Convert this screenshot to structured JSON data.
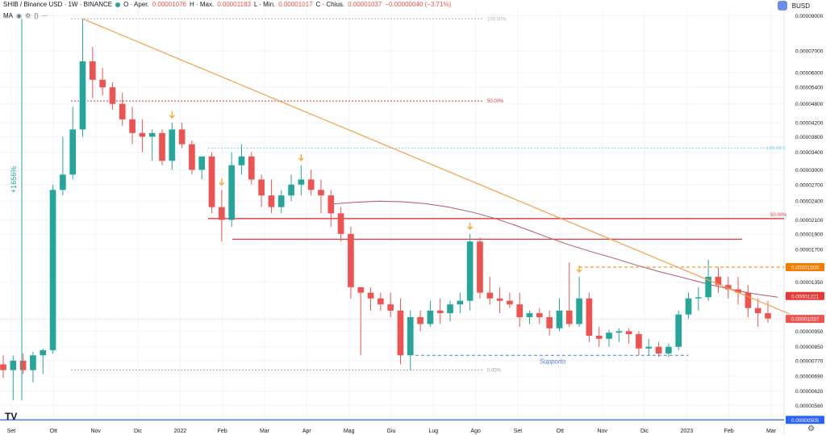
{
  "header": {
    "symbol": "SHIB / Binance USD · 1W · BINANCE",
    "open_label": "O · Aper.",
    "open_value": "0.00001076",
    "high_label": "H · Max.",
    "high_value": "0.00001183",
    "low_label": "L · Min.",
    "low_value": "0.00001017",
    "close_label": "C · Chius.",
    "close_value": "0.00001037",
    "change_value": "−0.00000040 (−3.71%)",
    "indicator_label": "MA",
    "currency": "BUSD"
  },
  "colors": {
    "up": "#26a69a",
    "down": "#ef5350",
    "trendline": "#f5a04b",
    "resistance": "#e0393e",
    "ma": "#b5566a",
    "support": "#4a7fe0",
    "fib_cyan": "#7fd8e8",
    "gain_arrow": "#26a69a"
  },
  "chart_data": {
    "type": "candlestick",
    "title": "",
    "x_labels": [
      "Set",
      "Ott",
      "Nov",
      "Dic",
      "2022",
      "Feb",
      "Mar",
      "Apr",
      "Mag",
      "Giu",
      "Lug",
      "Ago",
      "Set",
      "Ott",
      "Nov",
      "Dic",
      "2023",
      "Feb",
      "Mar"
    ],
    "y_ticks": [
      "0.00009000",
      "0.00007000",
      "0.00006000",
      "0.00005400",
      "0.00004800",
      "0.00004200",
      "0.00003800",
      "0.00003400",
      "0.00003000",
      "0.00002700",
      "0.00002400",
      "0.00002100",
      "0.00001900",
      "0.00001700",
      "0.00001350",
      "0.00000950",
      "0.00000850",
      "0.00000770",
      "0.00000690",
      "0.00000620",
      "0.00000560"
    ],
    "y_scale": "log",
    "price_badges": [
      {
        "label": "0.00001500",
        "value": 1.5e-05,
        "color": "#f57c00"
      },
      {
        "label": "0.00001221",
        "value": 1.221e-05,
        "color": "#e53935"
      },
      {
        "label": "0.00001037",
        "value": 1.037e-05,
        "color": "#ef5350"
      },
      {
        "label": "0.00000505",
        "value": 5.05e-06,
        "color": "#2962ff"
      }
    ],
    "candles": [
      {
        "o": 7.5e-06,
        "h": 8e-06,
        "l": 6.8e-06,
        "c": 7.2e-06
      },
      {
        "o": 7.2e-06,
        "h": 8e-06,
        "l": 5.8e-06,
        "c": 7.7e-06
      },
      {
        "o": 7.7e-06,
        "h": 8.1e-06,
        "l": 7e-06,
        "c": 7.2e-06
      },
      {
        "o": 7.2e-06,
        "h": 8.2e-06,
        "l": 6.6e-06,
        "c": 8e-06
      },
      {
        "o": 8e-06,
        "h": 8.4e-06,
        "l": 7e-06,
        "c": 8.3e-06
      },
      {
        "o": 8.3e-06,
        "h": 2.7e-05,
        "l": 8.1e-06,
        "c": 2.6e-05
      },
      {
        "o": 2.6e-05,
        "h": 3.8e-05,
        "l": 2.5e-05,
        "c": 2.9e-05
      },
      {
        "o": 2.9e-05,
        "h": 4.7e-05,
        "l": 2.8e-05,
        "c": 4e-05
      },
      {
        "o": 4e-05,
        "h": 8.8e-05,
        "l": 3.8e-05,
        "c": 6.5e-05
      },
      {
        "o": 6.5e-05,
        "h": 7.2e-05,
        "l": 5e-05,
        "c": 5.7e-05
      },
      {
        "o": 5.7e-05,
        "h": 6.2e-05,
        "l": 5.1e-05,
        "c": 5.4e-05
      },
      {
        "o": 5.4e-05,
        "h": 5.6e-05,
        "l": 4.6e-05,
        "c": 4.8e-05
      },
      {
        "o": 4.8e-05,
        "h": 5.2e-05,
        "l": 4.1e-05,
        "c": 4.3e-05
      },
      {
        "o": 4.3e-05,
        "h": 4.7e-05,
        "l": 3.6e-05,
        "c": 3.9e-05
      },
      {
        "o": 3.9e-05,
        "h": 4.3e-05,
        "l": 3.4e-05,
        "c": 3.8e-05
      },
      {
        "o": 3.8e-05,
        "h": 4e-05,
        "l": 3.2e-05,
        "c": 3.9e-05
      },
      {
        "o": 3.9e-05,
        "h": 4e-05,
        "l": 3.1e-05,
        "c": 3.2e-05
      },
      {
        "o": 3.2e-05,
        "h": 4.2e-05,
        "l": 3e-05,
        "c": 4e-05
      },
      {
        "o": 4e-05,
        "h": 4.2e-05,
        "l": 3.5e-05,
        "c": 3.6e-05
      },
      {
        "o": 3.6e-05,
        "h": 3.7e-05,
        "l": 2.9e-05,
        "c": 3e-05
      },
      {
        "o": 3e-05,
        "h": 3.3e-05,
        "l": 2.8e-05,
        "c": 3.3e-05
      },
      {
        "o": 3.3e-05,
        "h": 3.4e-05,
        "l": 2.2e-05,
        "c": 2.3e-05
      },
      {
        "o": 2.3e-05,
        "h": 2.6e-05,
        "l": 1.8e-05,
        "c": 2.1e-05
      },
      {
        "o": 2.1e-05,
        "h": 3.4e-05,
        "l": 2e-05,
        "c": 3.1e-05
      },
      {
        "o": 3.1e-05,
        "h": 3.6e-05,
        "l": 2.9e-05,
        "c": 3.3e-05
      },
      {
        "o": 3.3e-05,
        "h": 3.4e-05,
        "l": 2.7e-05,
        "c": 2.8e-05
      },
      {
        "o": 2.8e-05,
        "h": 2.9e-05,
        "l": 2.3e-05,
        "c": 2.5e-05
      },
      {
        "o": 2.5e-05,
        "h": 2.8e-05,
        "l": 2.2e-05,
        "c": 2.3e-05
      },
      {
        "o": 2.3e-05,
        "h": 2.6e-05,
        "l": 2.2e-05,
        "c": 2.5e-05
      },
      {
        "o": 2.5e-05,
        "h": 2.9e-05,
        "l": 2.4e-05,
        "c": 2.7e-05
      },
      {
        "o": 2.7e-05,
        "h": 3.1e-05,
        "l": 2.5e-05,
        "c": 2.8e-05
      },
      {
        "o": 2.8e-05,
        "h": 3e-05,
        "l": 2.5e-05,
        "c": 2.6e-05
      },
      {
        "o": 2.6e-05,
        "h": 2.8e-05,
        "l": 2.2e-05,
        "c": 2.5e-05
      },
      {
        "o": 2.5e-05,
        "h": 2.6e-05,
        "l": 2e-05,
        "c": 2.2e-05
      },
      {
        "o": 2.2e-05,
        "h": 2.3e-05,
        "l": 1.8e-05,
        "c": 1.9e-05
      },
      {
        "o": 1.9e-05,
        "h": 2e-05,
        "l": 1.2e-05,
        "c": 1.3e-05
      },
      {
        "o": 1.3e-05,
        "h": 1.3e-05,
        "l": 8e-06,
        "c": 1.25e-05
      },
      {
        "o": 1.25e-05,
        "h": 1.3e-05,
        "l": 1.1e-05,
        "c": 1.2e-05
      },
      {
        "o": 1.2e-05,
        "h": 1.25e-05,
        "l": 1.1e-05,
        "c": 1.15e-05
      },
      {
        "o": 1.15e-05,
        "h": 1.25e-05,
        "l": 1.05e-05,
        "c": 1.1e-05
      },
      {
        "o": 1.1e-05,
        "h": 1.2e-05,
        "l": 7.5e-06,
        "c": 8e-06
      },
      {
        "o": 8e-06,
        "h": 1.1e-05,
        "l": 7.2e-06,
        "c": 1.05e-05
      },
      {
        "o": 1.05e-05,
        "h": 1.1e-05,
        "l": 9.5e-06,
        "c": 1e-05
      },
      {
        "o": 1e-05,
        "h": 1.18e-05,
        "l": 9.8e-06,
        "c": 1.1e-05
      },
      {
        "o": 1.1e-05,
        "h": 1.2e-05,
        "l": 1e-05,
        "c": 1.08e-05
      },
      {
        "o": 1.08e-05,
        "h": 1.18e-05,
        "l": 1.02e-05,
        "c": 1.15e-05
      },
      {
        "o": 1.15e-05,
        "h": 1.25e-05,
        "l": 1.08e-05,
        "c": 1.18e-05
      },
      {
        "o": 1.18e-05,
        "h": 1.9e-05,
        "l": 1.1e-05,
        "c": 1.8e-05
      },
      {
        "o": 1.8e-05,
        "h": 1.85e-05,
        "l": 1.2e-05,
        "c": 1.25e-05
      },
      {
        "o": 1.25e-05,
        "h": 1.4e-05,
        "l": 1.15e-05,
        "c": 1.2e-05
      },
      {
        "o": 1.2e-05,
        "h": 1.3e-05,
        "l": 1.08e-05,
        "c": 1.18e-05
      },
      {
        "o": 1.18e-05,
        "h": 1.25e-05,
        "l": 1.12e-05,
        "c": 1.15e-05
      },
      {
        "o": 1.15e-05,
        "h": 1.25e-05,
        "l": 9.8e-06,
        "c": 1.05e-05
      },
      {
        "o": 1.05e-05,
        "h": 1.1e-05,
        "l": 1e-05,
        "c": 1.08e-05
      },
      {
        "o": 1.08e-05,
        "h": 1.12e-05,
        "l": 1e-05,
        "c": 1.05e-05
      },
      {
        "o": 1.05e-05,
        "h": 1.1e-05,
        "l": 9.2e-06,
        "c": 9.7e-06
      },
      {
        "o": 9.7e-06,
        "h": 1.2e-05,
        "l": 9.5e-06,
        "c": 1.1e-05
      },
      {
        "o": 1.1e-05,
        "h": 1.55e-05,
        "l": 9.8e-06,
        "c": 1e-05
      },
      {
        "o": 1e-05,
        "h": 1.4e-05,
        "l": 9.8e-06,
        "c": 1.2e-05
      },
      {
        "o": 1.2e-05,
        "h": 1.25e-05,
        "l": 8.8e-06,
        "c": 9.2e-06
      },
      {
        "o": 9.2e-06,
        "h": 9.8e-06,
        "l": 8.5e-06,
        "c": 9e-06
      },
      {
        "o": 9e-06,
        "h": 9.6e-06,
        "l": 8.5e-06,
        "c": 9.4e-06
      },
      {
        "o": 9.4e-06,
        "h": 9.7e-06,
        "l": 8.8e-06,
        "c": 9.5e-06
      },
      {
        "o": 9.5e-06,
        "h": 9.7e-06,
        "l": 8.7e-06,
        "c": 9.3e-06
      },
      {
        "o": 9.3e-06,
        "h": 9.5e-06,
        "l": 8e-06,
        "c": 8.4e-06
      },
      {
        "o": 8.4e-06,
        "h": 9e-06,
        "l": 8e-06,
        "c": 8.5e-06
      },
      {
        "o": 8.5e-06,
        "h": 8.8e-06,
        "l": 7.9e-06,
        "c": 8.1e-06
      },
      {
        "o": 8.1e-06,
        "h": 8.7e-06,
        "l": 7.9e-06,
        "c": 8.5e-06
      },
      {
        "o": 8.5e-06,
        "h": 1.1e-05,
        "l": 8.3e-06,
        "c": 1.07e-05
      },
      {
        "o": 1.07e-05,
        "h": 1.25e-05,
        "l": 1.04e-05,
        "c": 1.2e-05
      },
      {
        "o": 1.2e-05,
        "h": 1.3e-05,
        "l": 1.1e-05,
        "c": 1.21e-05
      },
      {
        "o": 1.21e-05,
        "h": 1.58e-05,
        "l": 1.18e-05,
        "c": 1.4e-05
      },
      {
        "o": 1.4e-05,
        "h": 1.5e-05,
        "l": 1.25e-05,
        "c": 1.32e-05
      },
      {
        "o": 1.32e-05,
        "h": 1.4e-05,
        "l": 1.2e-05,
        "c": 1.28e-05
      },
      {
        "o": 1.28e-05,
        "h": 1.4e-05,
        "l": 1.15e-05,
        "c": 1.25e-05
      },
      {
        "o": 1.25e-05,
        "h": 1.32e-05,
        "l": 1.05e-05,
        "c": 1.12e-05
      },
      {
        "o": 1.12e-05,
        "h": 1.2e-05,
        "l": 9.8e-06,
        "c": 1.08e-05
      },
      {
        "o": 1.08e-05,
        "h": 1.18e-05,
        "l": 1.01e-05,
        "c": 1.04e-05
      }
    ],
    "ma_line": [
      2.35e-05,
      2.38e-05,
      2.4e-05,
      2.39e-05,
      2.36e-05,
      2.3e-05,
      2.22e-05,
      2.12e-05,
      2e-05,
      1.88e-05,
      1.77e-05,
      1.68e-05,
      1.6e-05,
      1.52e-05,
      1.45e-05,
      1.39e-05,
      1.33e-05,
      1.28e-05,
      1.24e-05,
      1.21e-05
    ],
    "trendline": {
      "from": [
        8,
        8.8e-05
      ],
      "to": [
        78,
        1.22e-05
      ]
    },
    "resistance_lines": [
      {
        "value": 2.12e-05,
        "label": "50.00%"
      },
      {
        "value": 1.83e-05,
        "label": ""
      }
    ],
    "fib_levels": [
      {
        "label": "100.00%",
        "value": 8.8e-05,
        "color": "#b0b3ba"
      },
      {
        "label": "50.00%",
        "value": 4.9e-05,
        "color": "#e0393e"
      },
      {
        "label": "0.00%",
        "value": 7.2e-06,
        "color": "#9aa0a6"
      },
      {
        "label": "100.00%",
        "value": 3.5e-05,
        "color": "#7fd8e8"
      }
    ],
    "support": {
      "value": 8e-06,
      "label": "Supporto"
    },
    "gain_label": "+1656%",
    "arrow_candles": [
      17,
      22,
      30,
      47,
      58
    ]
  },
  "footer": {
    "logo": "TV",
    "settings_icon": "gear-icon"
  }
}
